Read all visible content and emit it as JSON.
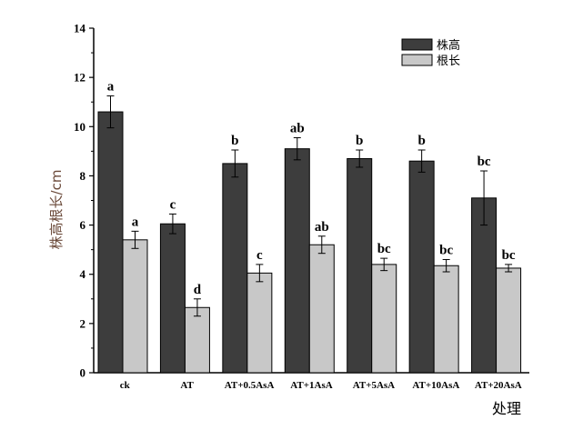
{
  "chart_data": {
    "type": "bar",
    "categories": [
      "ck",
      "AT",
      "AT+0.5AsA",
      "AT+1AsA",
      "AT+5AsA",
      "AT+10AsA",
      "AT+20AsA"
    ],
    "series": [
      {
        "name": "株高",
        "color": "#3d3d3d",
        "values": [
          10.6,
          6.05,
          8.5,
          9.1,
          8.7,
          8.6,
          7.1
        ],
        "errors": [
          0.65,
          0.4,
          0.55,
          0.45,
          0.35,
          0.45,
          1.1
        ],
        "labels": [
          "a",
          "c",
          "b",
          "ab",
          "b",
          "b",
          "bc"
        ]
      },
      {
        "name": "根长",
        "color": "#c8c8c8",
        "values": [
          5.4,
          2.65,
          4.05,
          5.2,
          4.4,
          4.35,
          4.25
        ],
        "errors": [
          0.35,
          0.35,
          0.35,
          0.35,
          0.25,
          0.25,
          0.15
        ],
        "labels": [
          "a",
          "d",
          "c",
          "ab",
          "bc",
          "bc",
          "bc"
        ]
      }
    ],
    "xlabel": "处理",
    "ylabel": "株高根长/cm",
    "ylim": [
      0,
      14
    ],
    "yticks": [
      "0",
      "2",
      "4",
      "6",
      "8",
      "10",
      "12",
      "14"
    ],
    "grid": false,
    "legend_position": "top-right"
  }
}
